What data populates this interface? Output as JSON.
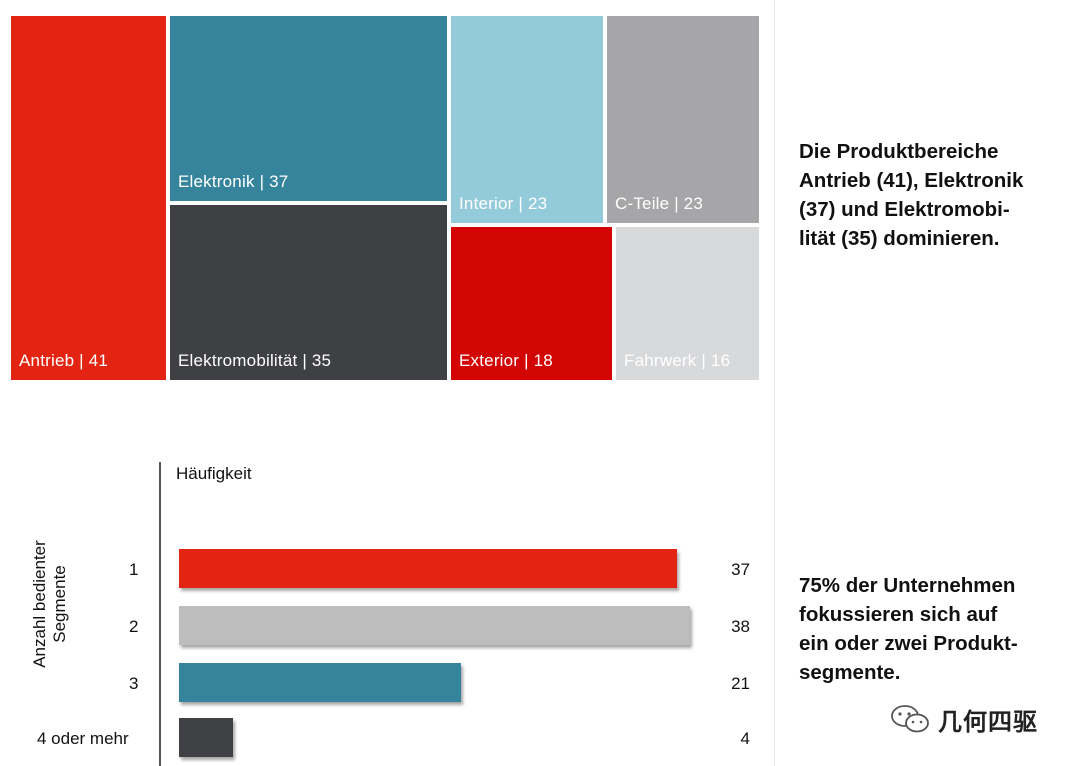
{
  "chart_data": [
    {
      "type": "treemap",
      "items": [
        {
          "name": "Antrieb",
          "value": 41,
          "color": "#e32412"
        },
        {
          "name": "Elektronik",
          "value": 37,
          "color": "#35849c"
        },
        {
          "name": "Elektromobilität",
          "value": 35,
          "color": "#3f4043"
        },
        {
          "name": "Interior",
          "value": 23,
          "color": "#94cbdb"
        },
        {
          "name": "C-Teile",
          "value": 23,
          "color": "#a6a6a8"
        },
        {
          "name": "Exterior",
          "value": 18,
          "color": "#d20404"
        },
        {
          "name": "Fahrwerk",
          "value": 16,
          "color": "#d8d9db"
        }
      ],
      "labels": [
        "Antrieb | 41",
        "Elektronik | 37",
        "Elektromobilität | 35",
        "Interior | 23",
        "C-Teile | 23",
        "Exterior | 18",
        "Fahrwerk | 16"
      ]
    },
    {
      "type": "bar",
      "orientation": "horizontal",
      "title": "Häufigkeit",
      "ylabel_lines": [
        "Anzahl bedienter",
        "Segmente"
      ],
      "categories": [
        "1",
        "2",
        "3",
        "4 oder mehr"
      ],
      "values": [
        37,
        38,
        21,
        4
      ],
      "colors": [
        "#e32412",
        "#bdbdbd",
        "#35849c",
        "#404144"
      ],
      "xlim": [
        0,
        38
      ]
    }
  ],
  "notes": {
    "top": [
      "Die Produktbereiche",
      "Antrieb (41), Elektronik",
      "(37) und Elektromobi-",
      "lität (35) dominieren."
    ],
    "bottom": [
      "75% der Unternehmen",
      "fokussieren sich auf",
      "ein oder zwei Produkt-",
      "segmente."
    ]
  },
  "watermark": {
    "text": "几何四驱",
    "icon": "wechat-icon"
  }
}
